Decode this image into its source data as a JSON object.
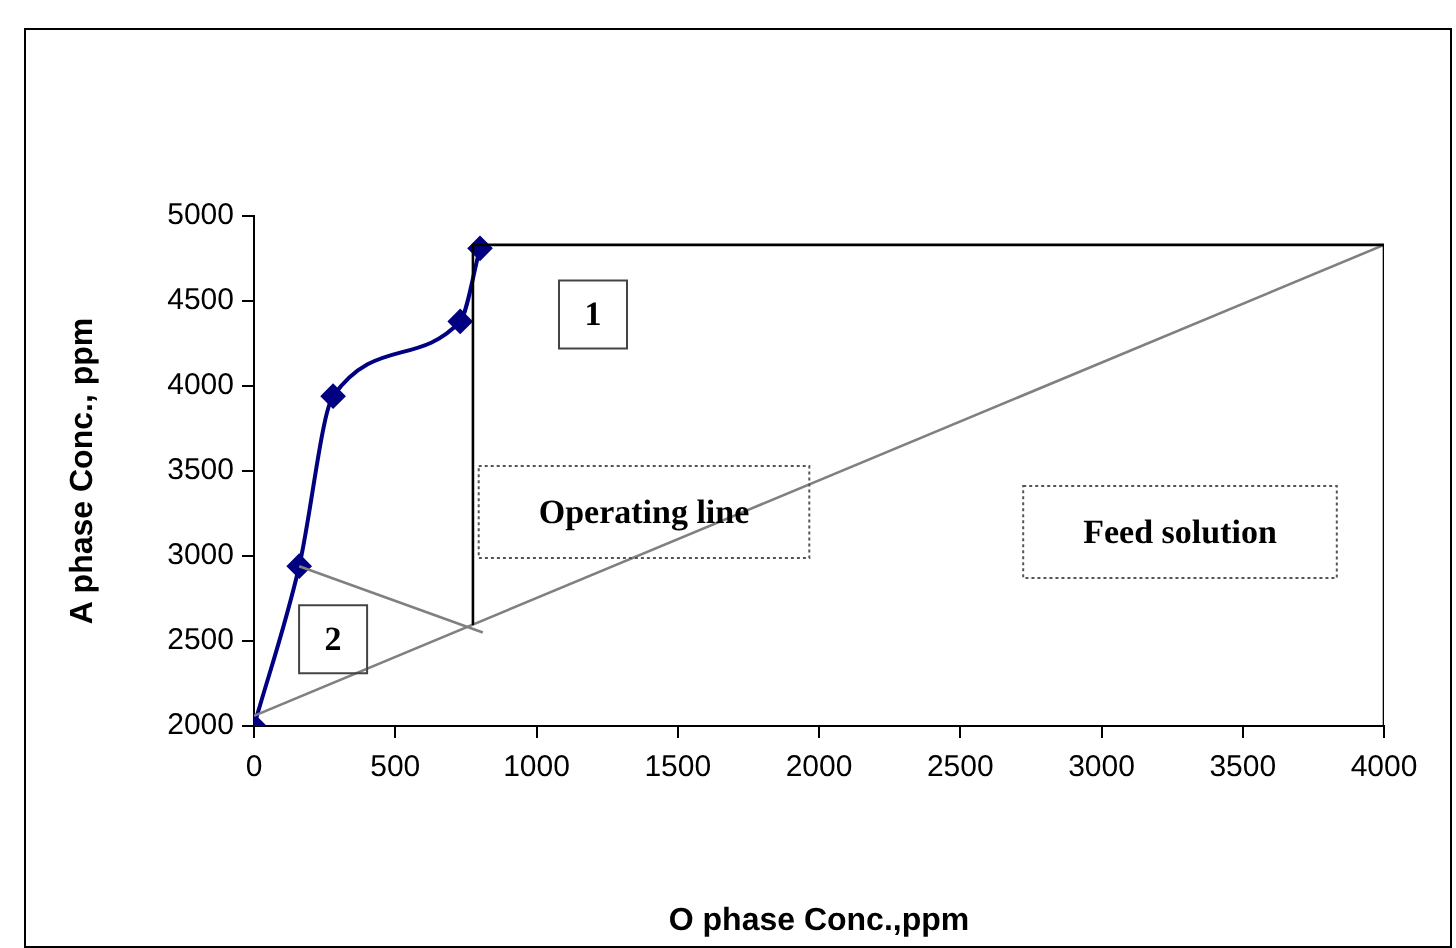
{
  "chart_data": {
    "type": "line",
    "xlabel": "O phase Conc.,ppm",
    "ylabel": "A phase Conc., ppm",
    "xlim": [
      0,
      4000
    ],
    "xticks": [
      0,
      500,
      1000,
      1500,
      2000,
      2500,
      3000,
      3500,
      4000
    ],
    "ylim": [
      2000,
      5000
    ],
    "yticks": [
      2000,
      2500,
      3000,
      3500,
      4000,
      4500,
      5000
    ],
    "grid": false,
    "legend": false,
    "series": [
      {
        "color": "#000080",
        "marker": "diamond",
        "x": [
          0,
          160,
          280,
          730,
          800
        ],
        "values": [
          2000,
          2940,
          3940,
          4380,
          4810
        ]
      },
      {
        "color": "#808080",
        "marker": "none",
        "x": [
          0,
          4000
        ],
        "values": [
          2060,
          4830
        ]
      },
      {
        "color": "#000000",
        "marker": "none",
        "x": [
          4000,
          4000,
          775,
          775
        ],
        "values": [
          2000,
          4830,
          4830,
          2600
        ]
      },
      {
        "color": "#808080",
        "marker": "none",
        "x": [
          160,
          810
        ],
        "values": [
          2940,
          2550
        ]
      }
    ],
    "annotations": [
      {
        "text": "1",
        "x": 1200,
        "y": 4420
      },
      {
        "text": "2",
        "x": 280,
        "y": 2510
      },
      "Operating line",
      "Feed solution"
    ]
  }
}
